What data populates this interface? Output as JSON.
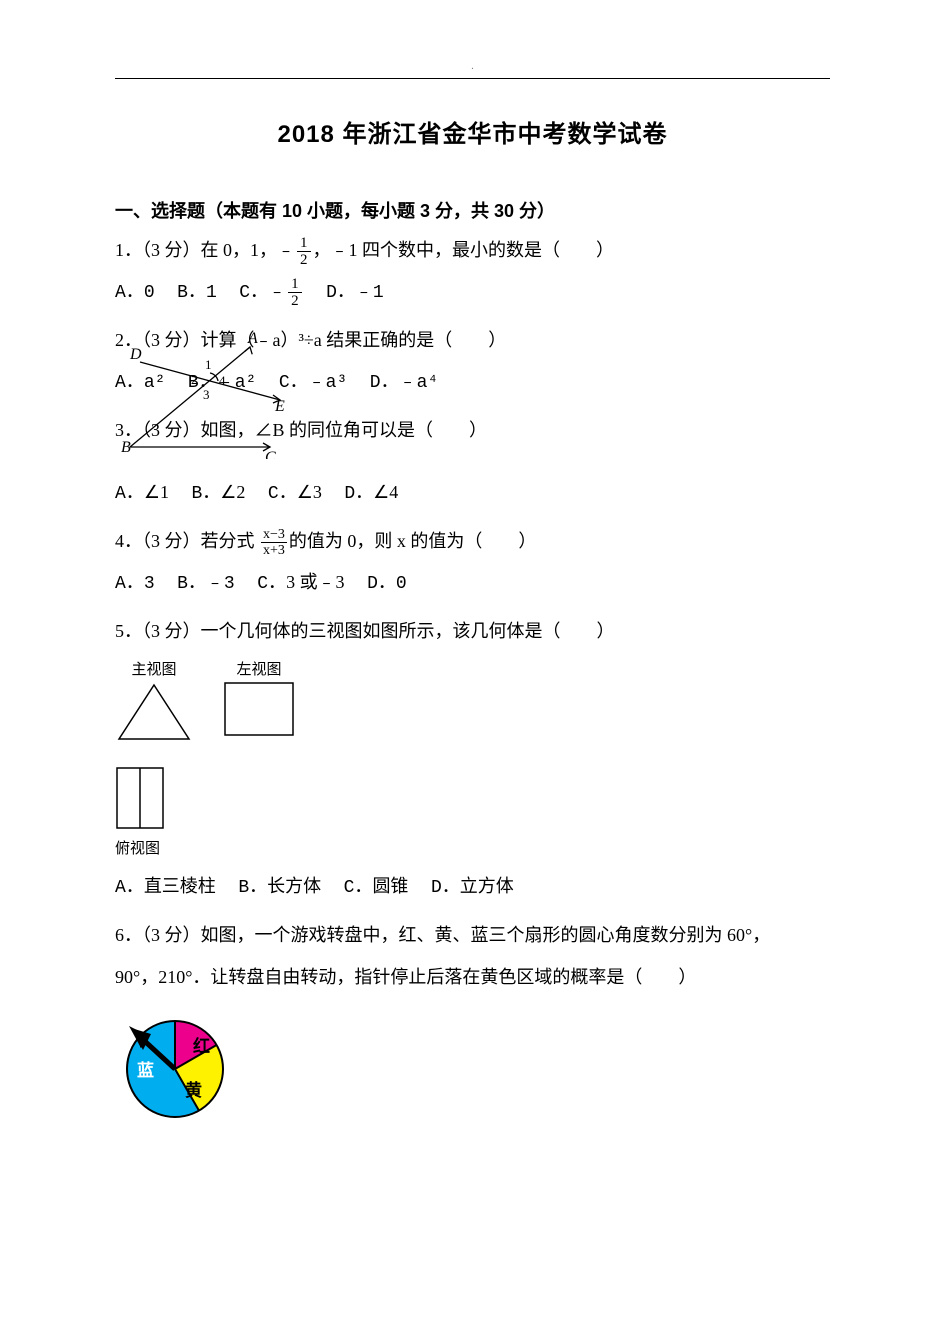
{
  "title": "2018 年浙江省金华市中考数学试卷",
  "section": "一、选择题（本题有 10 小题，每小题 3 分，共 30 分）",
  "q1": {
    "text_a": "1．（3 分）在 0，1，﹣",
    "frac_num": "1",
    "frac_den": "2",
    "text_b": "，﹣1 四个数中，最小的数是（　　）",
    "optA": "0",
    "optB": "1",
    "optC_prefix": "﹣",
    "optC_num": "1",
    "optC_den": "2",
    "optD": "﹣1"
  },
  "q2": {
    "text": "2．（3 分）计算（﹣a）³÷a 结果正确的是（　　）",
    "optA": "a²",
    "optB": "﹣a²",
    "optC": "﹣a³",
    "optD": "﹣a⁴"
  },
  "q3": {
    "text": "3．（3 分）如图，∠B 的同位角可以是（　　）",
    "optA": "∠1",
    "optB": "∠2",
    "optC": "∠3",
    "optD": "∠4",
    "figure": {
      "labels": {
        "A": "A",
        "B": "B",
        "C": "C",
        "D": "D",
        "E": "E",
        "n1": "1",
        "n2": "2",
        "n3": "3",
        "n4": "4"
      },
      "stroke": "#000000"
    }
  },
  "q4": {
    "text_a": "4．（3 分）若分式 ",
    "frac_num": "x−3",
    "frac_den": "x+3",
    "text_b": "的值为 0，则 x 的值为（　　）",
    "optA": "3",
    "optB": "﹣3",
    "optC": "3 或﹣3",
    "optD": "0"
  },
  "q5": {
    "text": "5．（3 分）一个几何体的三视图如图所示，该几何体是（　　）",
    "label_main": "主视图",
    "label_left": "左视图",
    "label_top": "俯视图",
    "optA": "直三棱柱",
    "optB": "长方体",
    "optC": "圆锥",
    "optD": "立方体",
    "stroke": "#000000"
  },
  "q6": {
    "text_a": "6．（3 分）如图，一个游戏转盘中，红、黄、蓝三个扇形的圆心角度数分别为 60°，",
    "text_b": "90°，210°．让转盘自由转动，指针停止后落在黄色区域的概率是（　　）",
    "colors": {
      "red": "#ec008c",
      "yellow": "#fff200",
      "blue": "#00aeef",
      "border": "#000000",
      "label_color": "#000000",
      "blue_label": "#ffffff"
    },
    "labels": {
      "red": "红",
      "yellow": "黄",
      "blue": "蓝"
    },
    "angles": {
      "red": 60,
      "yellow": 90,
      "blue": 210
    }
  }
}
